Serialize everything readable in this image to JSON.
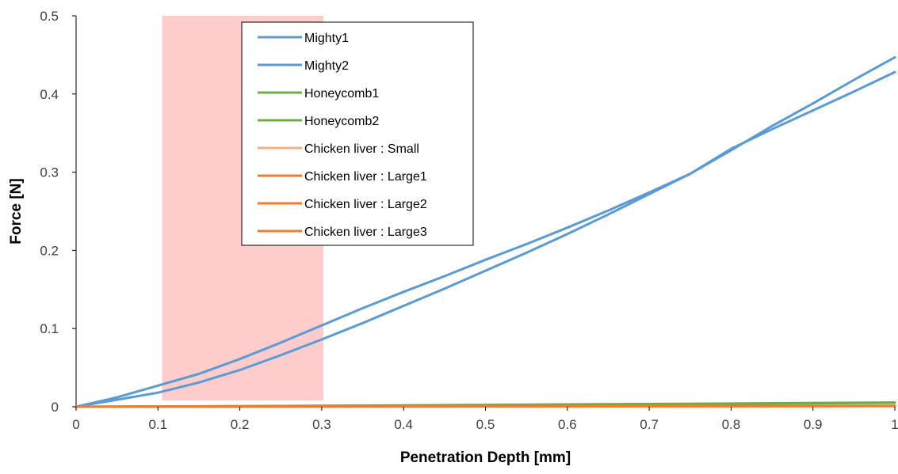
{
  "chart_data": {
    "type": "line",
    "title": "",
    "xlabel": "Penetration Depth [mm]",
    "ylabel": "Force [N]",
    "xlim": [
      0,
      1
    ],
    "ylim": [
      0,
      0.5
    ],
    "x_ticks": [
      "0",
      "0.1",
      "0.2",
      "0.3",
      "0.4",
      "0.5",
      "0.6",
      "0.7",
      "0.8",
      "0.9",
      "1"
    ],
    "y_ticks": [
      "0",
      "0.1",
      "0.2",
      "0.3",
      "0.4",
      "0.5"
    ],
    "grid": false,
    "legend_position": "top-center",
    "highlight_region": {
      "x_start": 0.105,
      "x_end": 0.302,
      "y_start": 0.008,
      "y_end": 0.5,
      "color": "#FFCCCC"
    },
    "series": [
      {
        "name": "Mighty1",
        "color": "#5B9BD5",
        "x": [
          0,
          0.05,
          0.1,
          0.15,
          0.2,
          0.25,
          0.3,
          0.35,
          0.4,
          0.45,
          0.5,
          0.55,
          0.6,
          0.65,
          0.7,
          0.75,
          0.8,
          0.85,
          0.9,
          0.95,
          1.0
        ],
        "y": [
          0,
          0.012,
          0.027,
          0.042,
          0.061,
          0.082,
          0.104,
          0.126,
          0.147,
          0.167,
          0.188,
          0.208,
          0.229,
          0.251,
          0.274,
          0.298,
          0.33,
          0.355,
          0.379,
          0.403,
          0.428
        ]
      },
      {
        "name": "Mighty2",
        "color": "#5B9BD5",
        "x": [
          0,
          0.05,
          0.1,
          0.15,
          0.2,
          0.25,
          0.3,
          0.35,
          0.4,
          0.45,
          0.5,
          0.55,
          0.6,
          0.65,
          0.7,
          0.75,
          0.8,
          0.85,
          0.9,
          0.95,
          1.0
        ],
        "y": [
          0,
          0.009,
          0.018,
          0.031,
          0.047,
          0.066,
          0.086,
          0.107,
          0.129,
          0.151,
          0.174,
          0.197,
          0.221,
          0.246,
          0.272,
          0.298,
          0.328,
          0.359,
          0.388,
          0.418,
          0.447
        ]
      },
      {
        "name": "Honeycomb1",
        "color": "#70AD47",
        "x": [
          0,
          0.2,
          0.4,
          0.6,
          0.8,
          1.0
        ],
        "y": [
          0,
          0.0008,
          0.0018,
          0.003,
          0.0042,
          0.0055
        ]
      },
      {
        "name": "Honeycomb2",
        "color": "#70AD47",
        "x": [
          0,
          0.2,
          0.4,
          0.6,
          0.8,
          1.0
        ],
        "y": [
          0,
          0.0006,
          0.0015,
          0.0026,
          0.0038,
          0.005
        ]
      },
      {
        "name": "Chicken liver : Small",
        "color": "#F4B183",
        "x": [
          0,
          0.5,
          1.0
        ],
        "y": [
          0,
          0.0004,
          0.0008
        ]
      },
      {
        "name": "Chicken liver : Large1",
        "color": "#ED7D31",
        "x": [
          0,
          0.5,
          1.0
        ],
        "y": [
          0,
          0.0005,
          0.001
        ]
      },
      {
        "name": "Chicken liver : Large2",
        "color": "#ED7D31",
        "x": [
          0,
          0.5,
          1.0
        ],
        "y": [
          0,
          0.0006,
          0.0012
        ]
      },
      {
        "name": "Chicken liver : Large3",
        "color": "#ED7D31",
        "x": [
          0,
          0.5,
          1.0
        ],
        "y": [
          0,
          0.0004,
          0.0009
        ]
      }
    ]
  }
}
